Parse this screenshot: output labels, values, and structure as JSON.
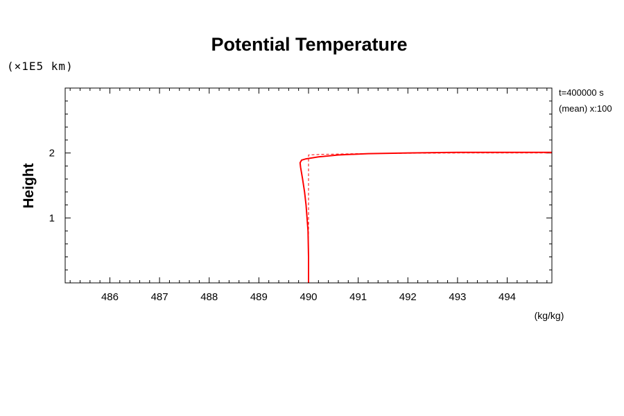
{
  "chart_data": {
    "type": "line",
    "title": "Potential Temperature",
    "ylabel": "Height",
    "xlabel": "",
    "x_unit": "(kg/kg)",
    "y_scale_note": "(×1E5 km)",
    "info": [
      "t=400000 s",
      "(mean) x:100"
    ],
    "xlim": [
      485.1,
      494.9
    ],
    "ylim": [
      0,
      3
    ],
    "x_ticks": [
      486,
      487,
      488,
      489,
      490,
      491,
      492,
      493,
      494
    ],
    "y_ticks": [
      1,
      2
    ],
    "grid": false,
    "colors": {
      "series": "#ff0000",
      "axis": "#000000"
    },
    "series": [
      {
        "style": "solid",
        "x": [
          490.0,
          490.0,
          489.99,
          489.97,
          489.95,
          489.92,
          489.88,
          489.84,
          489.83,
          489.86,
          489.95,
          490.2,
          490.6,
          491.2,
          492.0,
          493.0,
          494.9
        ],
        "y": [
          0.0,
          0.4,
          0.8,
          1.0,
          1.2,
          1.4,
          1.6,
          1.78,
          1.85,
          1.89,
          1.91,
          1.94,
          1.97,
          1.99,
          2.0,
          2.01,
          2.01
        ]
      },
      {
        "style": "dashed",
        "x": [
          490.0,
          490.0,
          490.0,
          490.0,
          490.3,
          491.0,
          493.0,
          494.9
        ],
        "y": [
          0.0,
          1.0,
          1.9,
          1.97,
          1.98,
          1.99,
          2.0,
          2.0
        ]
      }
    ]
  }
}
